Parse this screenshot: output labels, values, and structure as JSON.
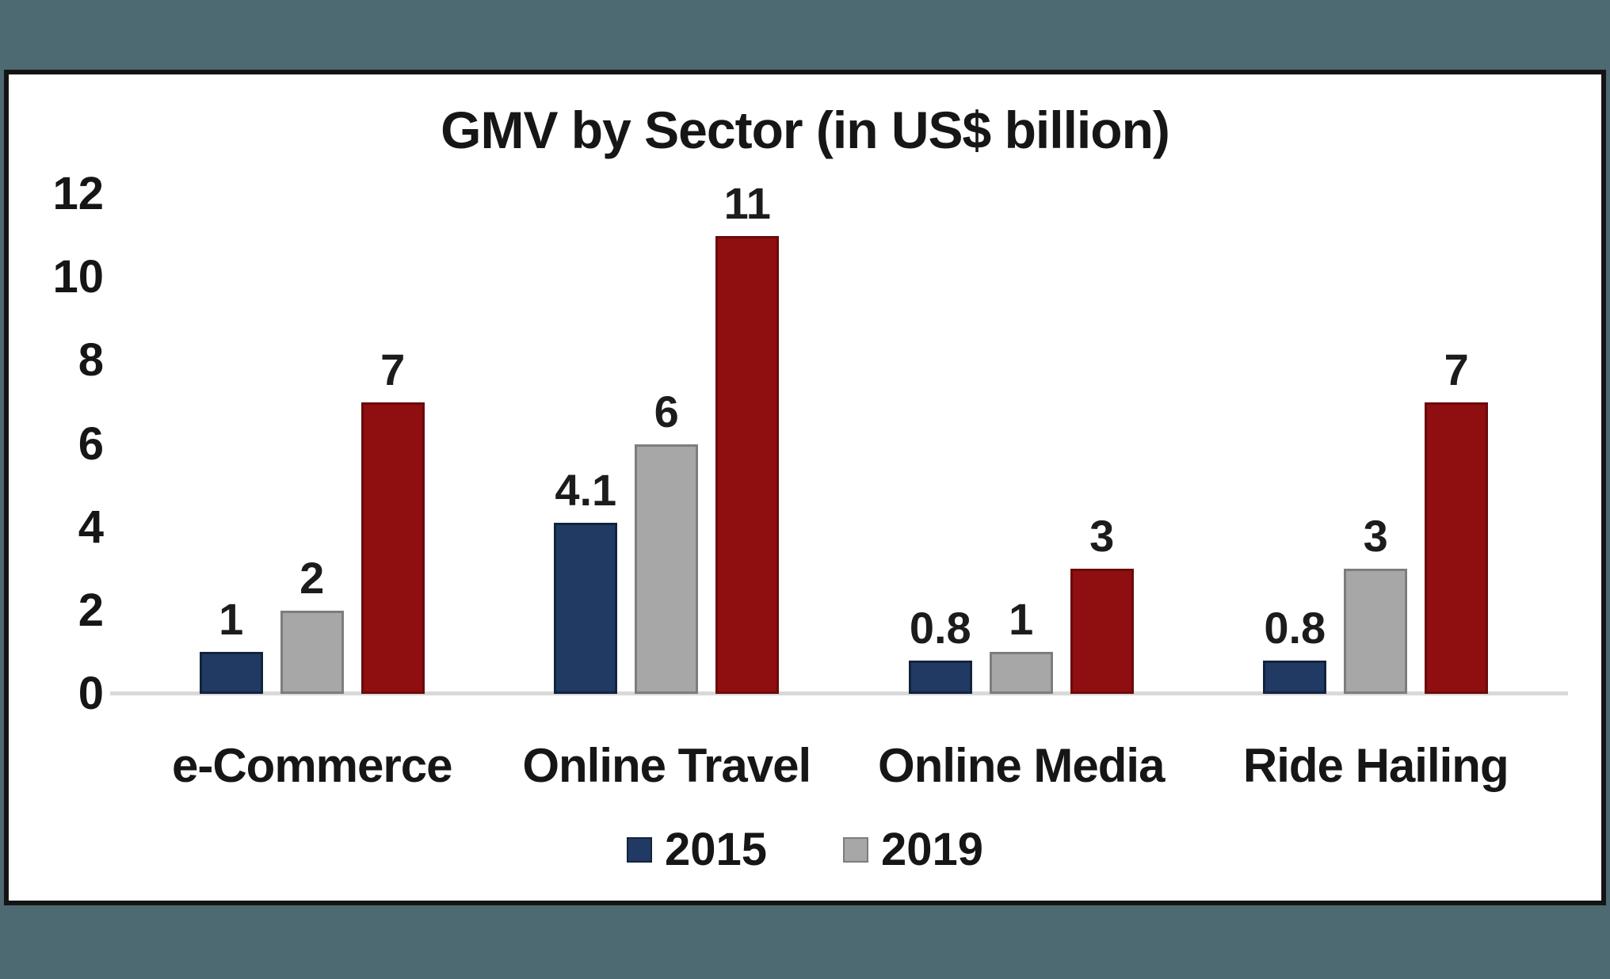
{
  "page": {
    "background_color": "#4d6972",
    "panel_background": "#ffffff",
    "panel_border_color": "#141414",
    "axis_line_color": "#d9d9d9"
  },
  "chart_data": {
    "type": "bar",
    "title": "GMV by Sector (in US$ billion)",
    "xlabel": "",
    "ylabel": "",
    "ylim": [
      0,
      12
    ],
    "yticks": [
      0,
      2,
      4,
      6,
      8,
      10,
      12
    ],
    "grid": false,
    "legend_position": "bottom",
    "categories": [
      "e-Commerce",
      "Online Travel",
      "Online Media",
      "Ride Hailing"
    ],
    "series": [
      {
        "name": "2015",
        "color": "#203a64",
        "border_color": "#13233d",
        "values": [
          1,
          4.1,
          0.8,
          0.8
        ],
        "value_labels": [
          "1",
          "4.1",
          "0.8",
          "0.8"
        ]
      },
      {
        "name": "2019",
        "color": "#a7a7a7",
        "border_color": "#7d7d7d",
        "values": [
          2,
          6,
          1,
          3
        ],
        "value_labels": [
          "2",
          "6",
          "1",
          "3"
        ]
      },
      {
        "name": "",
        "color": "#8f0e10",
        "border_color": "#6a0a0b",
        "values": [
          7,
          11,
          3,
          7
        ],
        "value_labels": [
          "7",
          "11",
          "3",
          "7"
        ]
      }
    ],
    "legend_entries": [
      {
        "label": "2015",
        "color": "#203a64",
        "border_color": "#13233d"
      },
      {
        "label": "2019",
        "color": "#a7a7a7",
        "border_color": "#7d7d7d"
      }
    ]
  }
}
